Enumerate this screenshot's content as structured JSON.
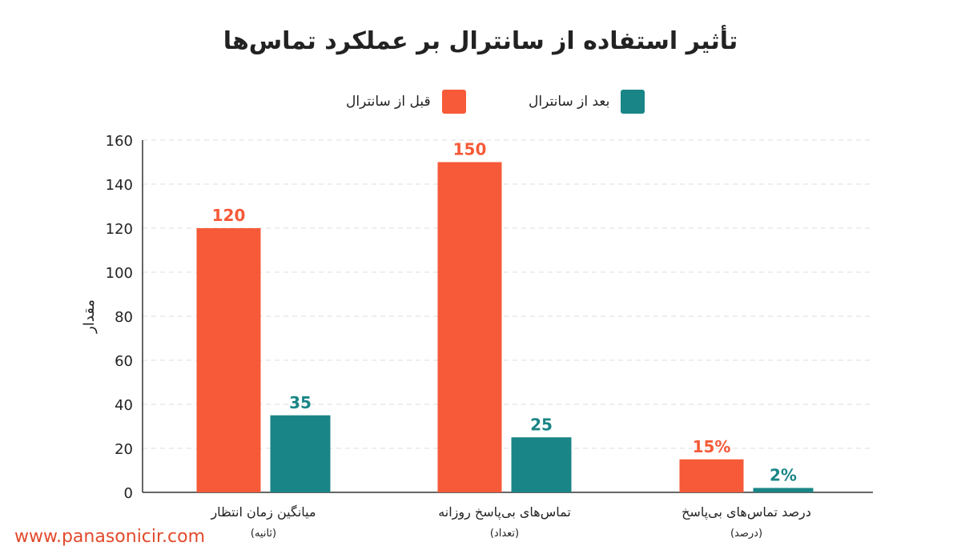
{
  "chart_data": {
    "type": "bar",
    "title": "تأثیر استفاده از سانترال بر عملکرد تماس‌ها",
    "ylabel": "مقدار",
    "ylim": [
      0,
      160
    ],
    "yticks": [
      "0",
      "20",
      "40",
      "60",
      "80",
      "100",
      "120",
      "140",
      "160"
    ],
    "grid": true,
    "legend_position": "top-center",
    "categories": [
      {
        "label": "میانگین زمان انتظار",
        "sublabel": "(ثانیه)"
      },
      {
        "label": "تماس‌های بی‌پاسخ روزانه",
        "sublabel": "(تعداد)"
      },
      {
        "label": "درصد تماس‌های بی‌پاسخ",
        "sublabel": "(درصد)"
      }
    ],
    "series": [
      {
        "name": "قبل از سانترال",
        "color": "#f65a38",
        "values": [
          120,
          150,
          15
        ],
        "data_labels": [
          "120",
          "150",
          "15%"
        ]
      },
      {
        "name": "بعد از سانترال",
        "color": "#1a8586",
        "values": [
          35,
          25,
          2
        ],
        "data_labels": [
          "35",
          "25",
          "2%"
        ]
      }
    ]
  },
  "watermark": "www.panasonicir.com"
}
